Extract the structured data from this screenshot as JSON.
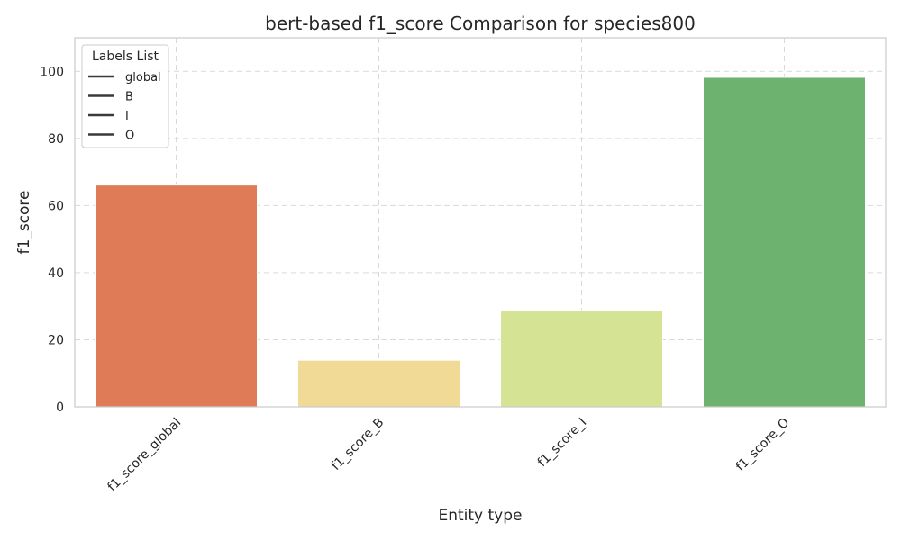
{
  "chart_data": {
    "type": "bar",
    "title": "bert-based f1_score Comparison for species800",
    "xlabel": "Entity type",
    "ylabel": "f1_score",
    "categories": [
      "f1_score_global",
      "f1_score_B",
      "f1_score_I",
      "f1_score_O"
    ],
    "values": [
      66.1,
      13.9,
      28.7,
      98.2
    ],
    "colors": [
      "#e07b58",
      "#f1da96",
      "#d5e395",
      "#6db36f"
    ],
    "ylim": [
      0,
      110
    ],
    "yticks": [
      0,
      20,
      40,
      60,
      80,
      100
    ],
    "ytick_labels": [
      "0",
      "20",
      "40",
      "60",
      "80",
      "100"
    ],
    "grid": true,
    "legend": {
      "title": "Labels List",
      "placement": "upper-left",
      "entries": [
        "global",
        "B",
        "I",
        "O"
      ],
      "line_color": "#3a3a3a"
    },
    "x_tick_rotation_deg": 45
  }
}
